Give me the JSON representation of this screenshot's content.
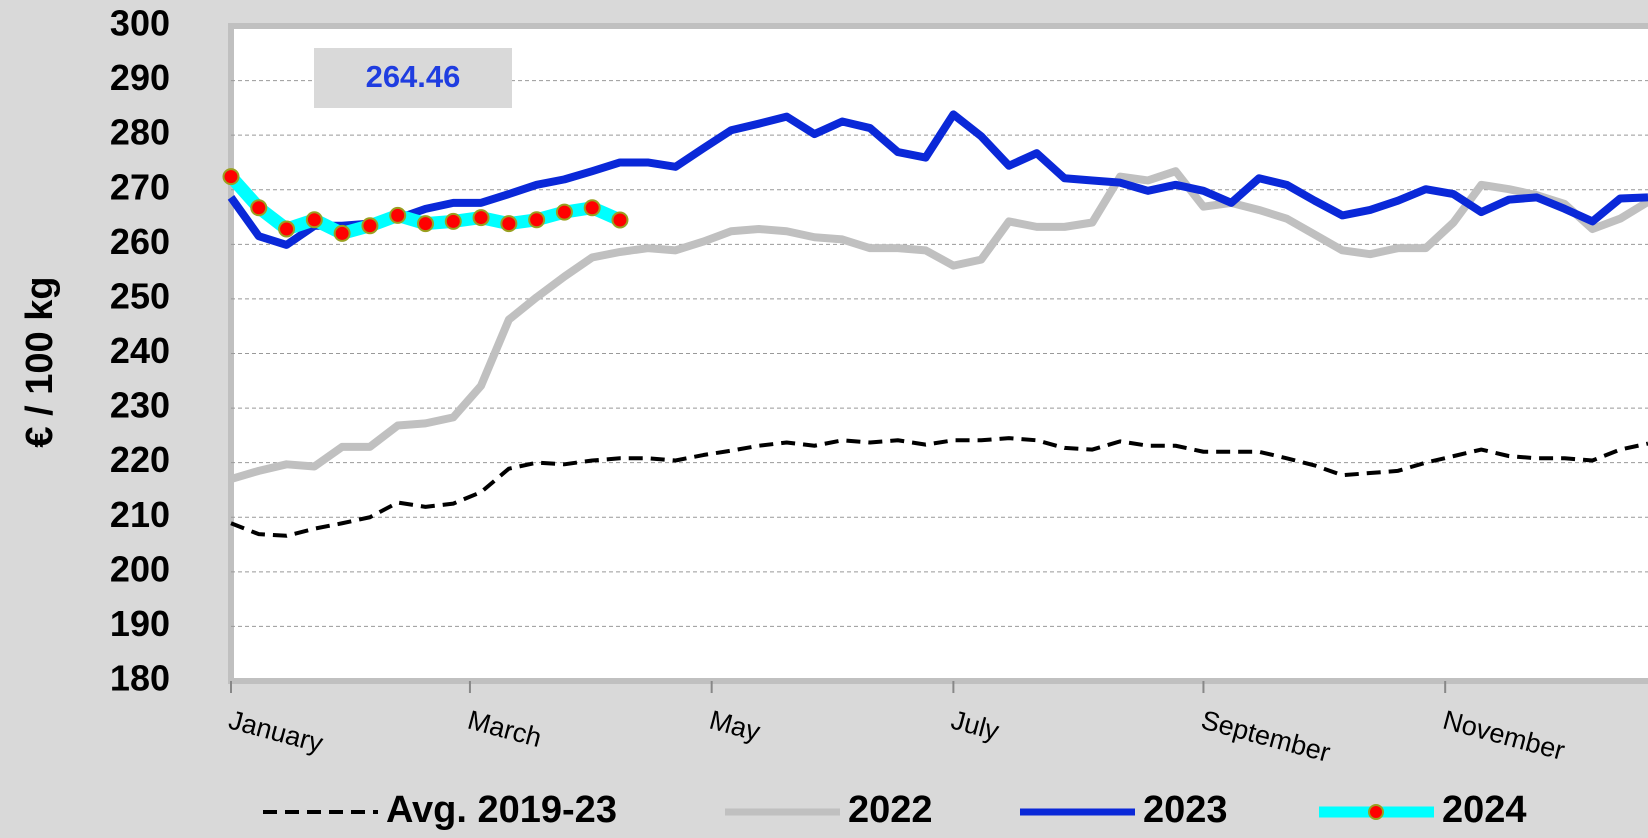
{
  "chart_data": {
    "type": "line",
    "y_label": "€ / 100 kg",
    "annotation": "264.46",
    "x": [
      1,
      2,
      3,
      4,
      5,
      6,
      7,
      8,
      9,
      10,
      11,
      12,
      13,
      14,
      15,
      16,
      17,
      18,
      19,
      20,
      21,
      22,
      23,
      24,
      25,
      26,
      27,
      28,
      29,
      30,
      31,
      32,
      33,
      34,
      35,
      36,
      37,
      38,
      39,
      40,
      41,
      42,
      43,
      44,
      45,
      46,
      47,
      48,
      49,
      50,
      51,
      52
    ],
    "xlim": [
      1,
      52
    ],
    "xticks": [
      {
        "value": 1,
        "label": "January"
      },
      {
        "value": 9.6,
        "label": "March"
      },
      {
        "value": 18.3,
        "label": "May"
      },
      {
        "value": 27,
        "label": "July"
      },
      {
        "value": 36,
        "label": "September"
      },
      {
        "value": 44.7,
        "label": "November"
      }
    ],
    "ylim": [
      180,
      300
    ],
    "yticks": [
      180,
      190,
      200,
      210,
      220,
      230,
      240,
      250,
      260,
      270,
      280,
      290,
      300
    ],
    "grid": true,
    "legend": "bottom",
    "series": [
      {
        "name": "Avg. 2019-23",
        "color": "#000000",
        "dashed": true,
        "values": [
          208.9,
          206.9,
          206.6,
          207.9,
          208.9,
          210.0,
          212.7,
          211.9,
          212.5,
          214.6,
          218.9,
          220.0,
          219.7,
          220.4,
          220.8,
          220.8,
          220.4,
          221.4,
          222.2,
          223.1,
          223.7,
          223.1,
          224.1,
          223.7,
          224.1,
          223.3,
          224.1,
          224.1,
          224.5,
          224.1,
          222.7,
          222.4,
          223.9,
          223.1,
          223.1,
          222.0,
          222.0,
          222.0,
          220.8,
          219.5,
          217.7,
          218.1,
          218.5,
          220.0,
          221.2,
          222.4,
          221.2,
          220.8,
          220.8,
          220.4,
          222.4,
          223.5
        ]
      },
      {
        "name": "2022",
        "color": "#c0c0c0",
        "values": [
          217.0,
          218.5,
          219.7,
          219.3,
          222.9,
          222.9,
          226.8,
          227.2,
          228.3,
          234.1,
          246.2,
          250.3,
          254.1,
          257.6,
          258.6,
          259.3,
          258.9,
          260.5,
          262.4,
          262.8,
          262.4,
          261.3,
          260.9,
          259.3,
          259.3,
          258.9,
          256.1,
          257.2,
          264.2,
          263.2,
          263.2,
          264.0,
          272.4,
          271.7,
          273.4,
          266.9,
          267.6,
          266.3,
          264.7,
          261.8,
          258.9,
          258.2,
          259.3,
          259.3,
          264.0,
          270.9,
          270.1,
          269.0,
          267.4,
          262.8,
          264.7,
          267.8
        ]
      },
      {
        "name": "2023",
        "color": "#0a28d8",
        "values": [
          268.6,
          261.5,
          259.9,
          263.4,
          263.4,
          263.8,
          264.7,
          266.5,
          267.6,
          267.6,
          269.2,
          270.9,
          271.9,
          273.4,
          275.0,
          275.0,
          274.2,
          277.6,
          280.9,
          282.1,
          283.4,
          280.2,
          282.5,
          281.3,
          276.9,
          275.9,
          283.8,
          279.8,
          274.4,
          276.7,
          272.1,
          271.7,
          271.3,
          269.8,
          270.9,
          269.8,
          267.6,
          272.1,
          270.9,
          268.0,
          265.3,
          266.3,
          268.0,
          270.1,
          269.2,
          265.9,
          268.2,
          268.6,
          266.5,
          264.2,
          268.4,
          268.6
        ]
      },
      {
        "name": "2024",
        "color": "#00ffff",
        "marker": true,
        "marker_color": "#ff0000",
        "values": [
          272.4,
          266.7,
          262.8,
          264.5,
          262.0,
          263.4,
          265.3,
          263.8,
          264.2,
          264.9,
          263.8,
          264.5,
          265.9,
          266.7,
          264.46,
          null,
          null,
          null,
          null,
          null,
          null,
          null,
          null,
          null,
          null,
          null,
          null,
          null,
          null,
          null,
          null,
          null,
          null,
          null,
          null,
          null,
          null,
          null,
          null,
          null,
          null,
          null,
          null,
          null,
          null,
          null,
          null,
          null,
          null,
          null,
          null,
          null
        ]
      }
    ]
  }
}
